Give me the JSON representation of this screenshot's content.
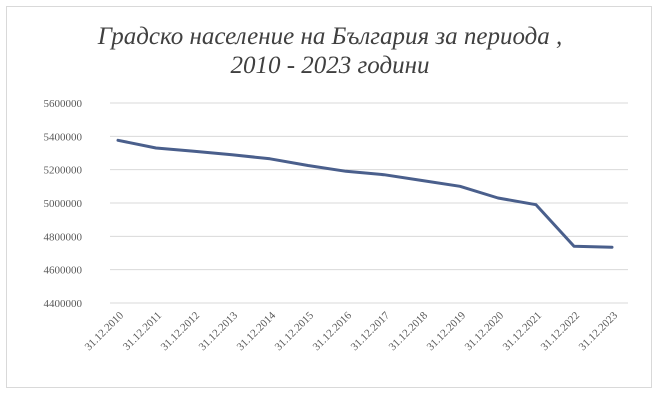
{
  "chart_data": {
    "type": "line",
    "title_lines": [
      "Градско население на България за периода ,",
      "2010 - 2023 години"
    ],
    "xlabel": "",
    "ylabel": "",
    "categories": [
      "31.12.2010",
      "31.12.2011",
      "31.12.2012",
      "31.12.2013",
      "31.12.2014",
      "31.12.2015",
      "31.12.2016",
      "31.12.2017",
      "31.12.2018",
      "31.12.2019",
      "31.12.2020",
      "31.12.2021",
      "31.12.2022",
      "31.12.2023"
    ],
    "series": [
      {
        "values": [
          5376000,
          5330000,
          5310000,
          5290000,
          5265000,
          5225000,
          5190000,
          5170000,
          5135000,
          5100000,
          5030000,
          4990000,
          4740000,
          4735000
        ]
      }
    ],
    "yticks": [
      "4400000",
      "4600000",
      "4800000",
      "5000000",
      "5200000",
      "5400000",
      "5600000"
    ],
    "ylim": [
      4400000,
      5600000
    ],
    "grid": true,
    "legend": "none",
    "line_color": "#4a5f8c"
  }
}
